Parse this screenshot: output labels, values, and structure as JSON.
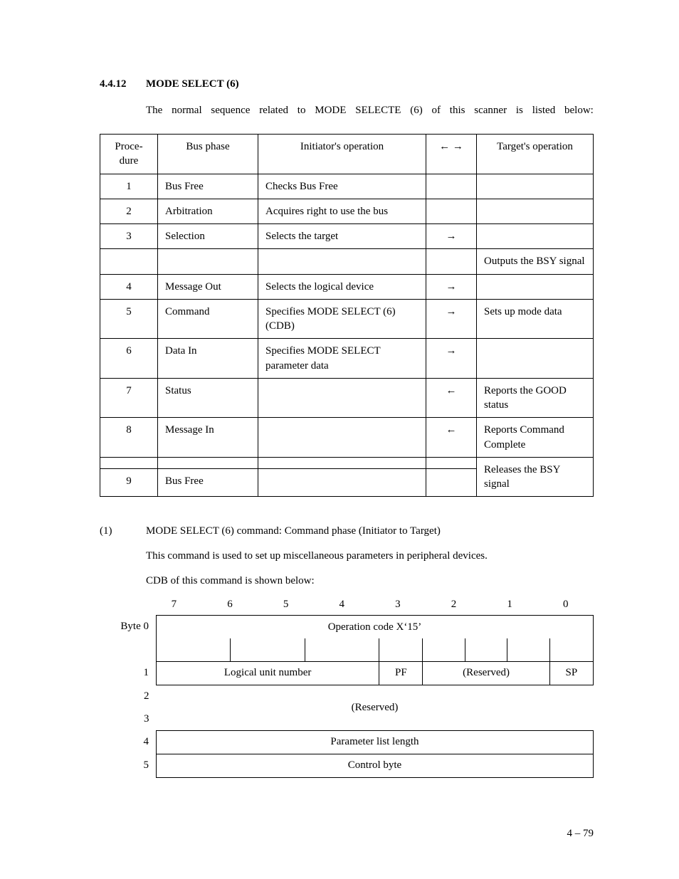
{
  "section_number": "4.4.12",
  "section_title": "MODE SELECT (6)",
  "intro": "The normal sequence related to MODE SELECTE (6) of this scanner is listed below:",
  "headers": {
    "procedure": "Proce-\ndure",
    "bus_phase": "Bus phase",
    "initiator": "Initiator's operation",
    "arrows": "← →",
    "target": "Target's operation"
  },
  "rows": [
    {
      "n": "1",
      "phase": "Bus Free",
      "init": "Checks Bus Free",
      "arrow": "",
      "target": ""
    },
    {
      "n": "2",
      "phase": "Arbitration",
      "init": "Acquires right to use the bus",
      "arrow": "",
      "target": ""
    },
    {
      "n": "3",
      "phase": "Selection",
      "init": "Selects the target",
      "arrow": "→",
      "target": ""
    },
    {
      "n": "",
      "phase": "",
      "init": "",
      "arrow": "",
      "target": "Outputs the BSY signal"
    },
    {
      "n": "4",
      "phase": "Message Out",
      "init": "Selects the logical device",
      "arrow": "→",
      "target": ""
    },
    {
      "n": "5",
      "phase": "Command",
      "init": "Specifies MODE SELECT (6) (CDB)",
      "arrow": "→",
      "target": "Sets up mode data"
    },
    {
      "n": "6",
      "phase": "Data In",
      "init": "Specifies MODE SELECT parameter data",
      "arrow": "→",
      "target": ""
    },
    {
      "n": "7",
      "phase": "Status",
      "init": "",
      "arrow": "←",
      "target": "Reports the GOOD status"
    },
    {
      "n": "8",
      "phase": "Message In",
      "init": "",
      "arrow": "←",
      "target": "Reports Command Complete"
    },
    {
      "n": "",
      "phase": "",
      "init": "",
      "arrow": "",
      "target": "Releases the BSY signal",
      "no_bottom": true
    },
    {
      "n": "9",
      "phase": "Bus Free",
      "init": "",
      "arrow": "",
      "target": "",
      "merge_up_target": true
    }
  ],
  "sub_num": "(1)",
  "sub_title": "MODE SELECT (6) command:  Command phase (Initiator to Target)",
  "sub_p1": "This command is used to set up miscellaneous parameters in peripheral devices.",
  "sub_p2": "CDB of this command is shown below:",
  "bits": [
    "7",
    "6",
    "5",
    "4",
    "3",
    "2",
    "1",
    "0"
  ],
  "cdb": {
    "byte0_label": "Byte 0",
    "byte0": "Operation code X‘15’",
    "byte1_lun": "Logical unit number",
    "byte1_pf": "PF",
    "byte1_resv": "(Reserved)",
    "byte1_sp": "SP",
    "byte23": "(Reserved)",
    "byte4": "Parameter list length",
    "byte5": "Control byte",
    "labels": [
      "1",
      "2",
      "3",
      "4",
      "5"
    ]
  },
  "page_number": "4 – 79"
}
